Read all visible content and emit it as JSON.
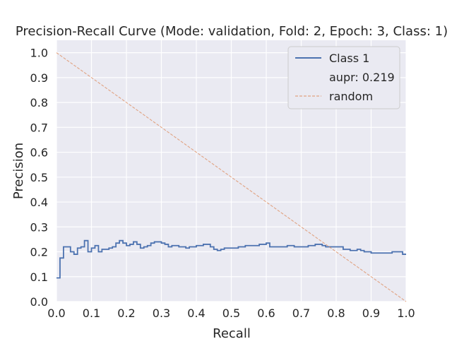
{
  "chart_data": {
    "type": "line",
    "title": "Precision-Recall Curve (Mode: validation, Fold: 2, Epoch: 3, Class: 1)",
    "xlabel": "Recall",
    "ylabel": "Precision",
    "xlim": [
      0.0,
      1.0
    ],
    "ylim": [
      0.0,
      1.05
    ],
    "xticks": [
      "0.0",
      "0.1",
      "0.2",
      "0.3",
      "0.4",
      "0.5",
      "0.6",
      "0.7",
      "0.8",
      "0.9",
      "1.0"
    ],
    "yticks": [
      "0.0",
      "0.1",
      "0.2",
      "0.3",
      "0.4",
      "0.5",
      "0.6",
      "0.7",
      "0.8",
      "0.9",
      "1.0"
    ],
    "grid": true,
    "legend_position": "top-right",
    "series": [
      {
        "name": "Class 1",
        "color": "#4c72b0",
        "style": "step",
        "x": [
          0.0,
          0.01,
          0.02,
          0.04,
          0.05,
          0.06,
          0.07,
          0.08,
          0.09,
          0.1,
          0.11,
          0.12,
          0.13,
          0.14,
          0.15,
          0.16,
          0.17,
          0.18,
          0.19,
          0.2,
          0.21,
          0.22,
          0.23,
          0.24,
          0.25,
          0.26,
          0.27,
          0.28,
          0.29,
          0.3,
          0.31,
          0.32,
          0.33,
          0.35,
          0.37,
          0.38,
          0.4,
          0.42,
          0.44,
          0.45,
          0.46,
          0.47,
          0.48,
          0.5,
          0.52,
          0.54,
          0.56,
          0.58,
          0.6,
          0.61,
          0.62,
          0.64,
          0.66,
          0.68,
          0.7,
          0.72,
          0.74,
          0.76,
          0.77,
          0.78,
          0.8,
          0.82,
          0.84,
          0.85,
          0.86,
          0.87,
          0.88,
          0.89,
          0.9,
          0.92,
          0.94,
          0.96,
          0.98,
          0.99,
          1.0
        ],
        "y": [
          0.095,
          0.175,
          0.22,
          0.2,
          0.19,
          0.215,
          0.22,
          0.245,
          0.2,
          0.215,
          0.225,
          0.2,
          0.21,
          0.21,
          0.215,
          0.22,
          0.235,
          0.245,
          0.235,
          0.225,
          0.23,
          0.24,
          0.23,
          0.215,
          0.22,
          0.225,
          0.235,
          0.24,
          0.24,
          0.235,
          0.23,
          0.22,
          0.225,
          0.22,
          0.215,
          0.22,
          0.225,
          0.23,
          0.22,
          0.21,
          0.205,
          0.21,
          0.215,
          0.215,
          0.22,
          0.225,
          0.225,
          0.23,
          0.235,
          0.22,
          0.22,
          0.22,
          0.225,
          0.22,
          0.22,
          0.225,
          0.23,
          0.225,
          0.22,
          0.22,
          0.22,
          0.21,
          0.205,
          0.205,
          0.21,
          0.205,
          0.2,
          0.2,
          0.195,
          0.195,
          0.195,
          0.2,
          0.2,
          0.19,
          0.19
        ]
      },
      {
        "name": "random",
        "color": "#dd8452",
        "style": "dashed",
        "x": [
          0.0,
          1.0
        ],
        "y": [
          1.0,
          0.0
        ]
      }
    ],
    "legend_entries": [
      {
        "label": "Class 1",
        "marker": "solid-line"
      },
      {
        "label": "aupr: 0.219",
        "marker": "none"
      },
      {
        "label": "random",
        "marker": "dashed-line"
      }
    ]
  }
}
